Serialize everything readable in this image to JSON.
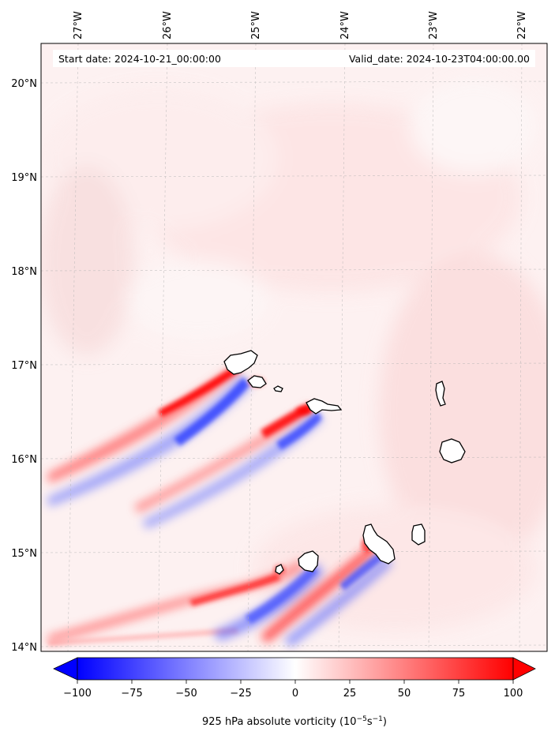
{
  "map": {
    "start_label": "Start date: 2024-10-21_00:00:00",
    "valid_label": "Valid_date: 2024-10-23T04:00:00.00",
    "lon_ticks": [
      "27°W",
      "26°W",
      "25°W",
      "24°W",
      "23°W",
      "22°W"
    ],
    "lat_ticks": [
      "20°N",
      "19°N",
      "18°N",
      "17°N",
      "16°N",
      "15°N",
      "14°N"
    ],
    "grid": true,
    "colors": {
      "positive": "#ff0000",
      "negative": "#0000ff",
      "background_tint": "#fdeaea",
      "coastline": "#000000"
    }
  },
  "colorbar": {
    "label_main": "925 hPa absolute vorticity (10",
    "label_exp1": "−5",
    "label_mid": "s",
    "label_exp2": "−1",
    "label_end": ")",
    "min": -100,
    "max": 100,
    "tick_labels": [
      "−100",
      "−75",
      "−50",
      "−25",
      "0",
      "25",
      "50",
      "75",
      "100"
    ],
    "extend": "both"
  }
}
